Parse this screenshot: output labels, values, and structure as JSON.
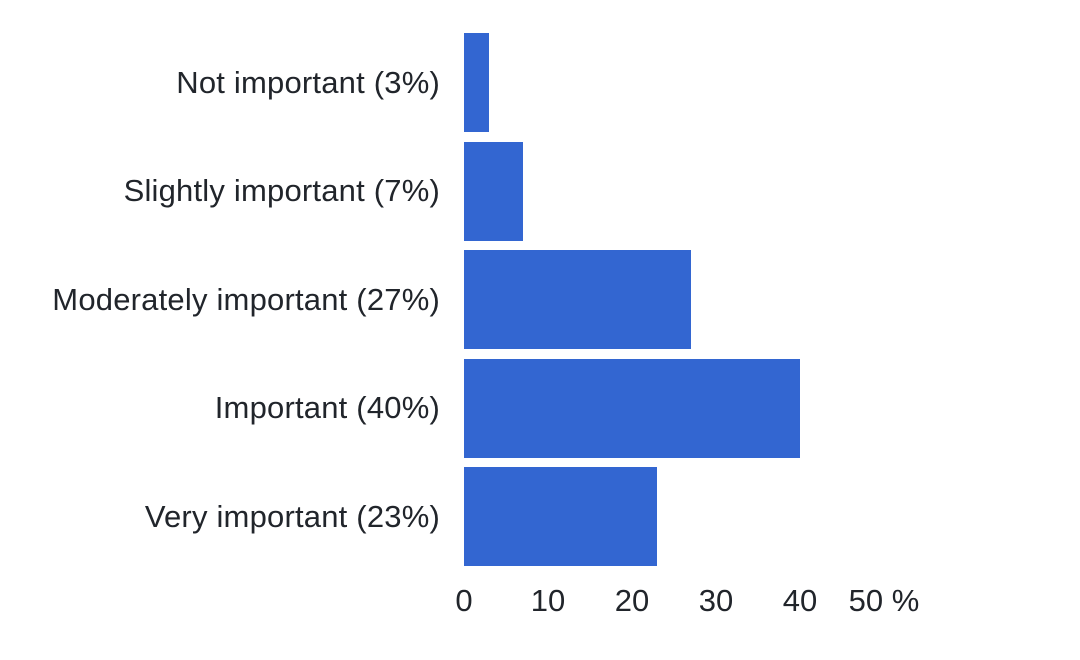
{
  "chart": {
    "background_color": "#ffffff",
    "bar_color": "#3366d1",
    "text_color": "#21252b"
  },
  "chart_data": {
    "type": "bar",
    "orientation": "horizontal",
    "title": "",
    "xlabel": "",
    "ylabel": "",
    "categories": [
      "Not important (3%)",
      "Slightly important (7%)",
      "Moderately important (27%)",
      "Important (40%)",
      "Very important (23%)"
    ],
    "values": [
      3,
      7,
      27,
      40,
      23
    ],
    "xlim": [
      0,
      50
    ],
    "xticks": [
      0,
      10,
      20,
      30,
      40,
      50
    ],
    "xtick_labels": [
      "0",
      "10",
      "20",
      "30",
      "40",
      "50 %"
    ],
    "x_unit": "%",
    "grid": false,
    "legend": false
  }
}
